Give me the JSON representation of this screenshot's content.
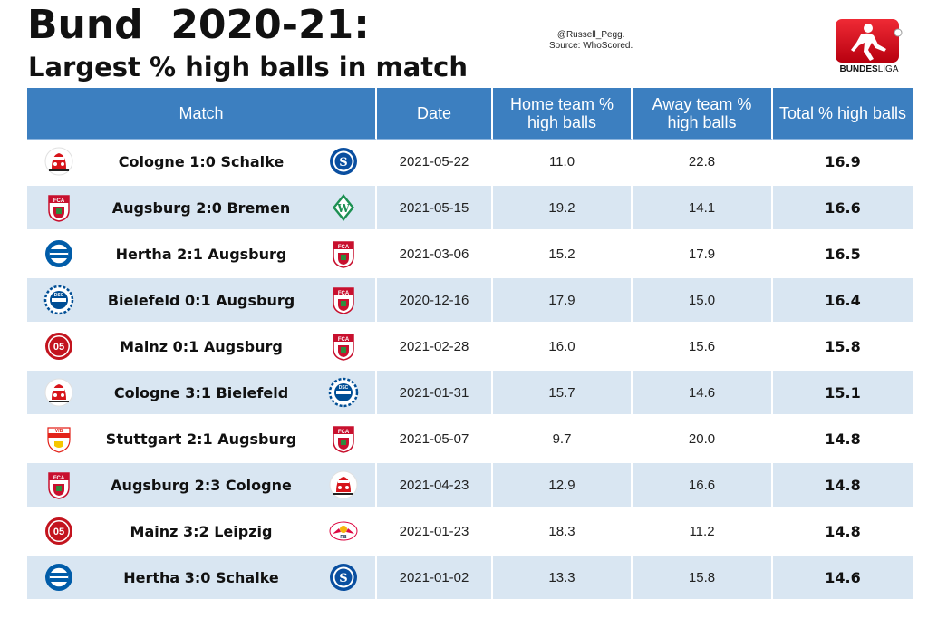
{
  "header": {
    "title": "Bund  2020-21:",
    "subtitle": "Largest % high balls in match",
    "credit_line1": "@Russell_Pegg.",
    "credit_line2": "Source: WhoScored."
  },
  "logo": {
    "name": "bundesliga-logo",
    "text_bold": "BUNDES",
    "text_light": "LIGA",
    "color": "#d20515"
  },
  "colors": {
    "header_bg": "#3c7fc0",
    "alt_row_bg": "#d9e6f2"
  },
  "chart_data": {
    "type": "table",
    "title": "Largest % high balls in match",
    "columns": [
      "Match",
      "Date",
      "Home team % high balls",
      "Away team % high balls",
      "Total % high balls"
    ],
    "rows": [
      {
        "home_crest": "cologne-crest",
        "match": "Cologne 1:0 Schalke",
        "away_crest": "schalke-crest",
        "date": "2021-05-22",
        "home_pct": "11.0",
        "away_pct": "22.8",
        "total_pct": "16.9"
      },
      {
        "home_crest": "augsburg-crest",
        "match": "Augsburg 2:0 Bremen",
        "away_crest": "bremen-crest",
        "date": "2021-05-15",
        "home_pct": "19.2",
        "away_pct": "14.1",
        "total_pct": "16.6"
      },
      {
        "home_crest": "hertha-crest",
        "match": "Hertha 2:1 Augsburg",
        "away_crest": "augsburg-crest",
        "date": "2021-03-06",
        "home_pct": "15.2",
        "away_pct": "17.9",
        "total_pct": "16.5"
      },
      {
        "home_crest": "bielefeld-crest",
        "match": "Bielefeld 0:1 Augsburg",
        "away_crest": "augsburg-crest",
        "date": "2020-12-16",
        "home_pct": "17.9",
        "away_pct": "15.0",
        "total_pct": "16.4"
      },
      {
        "home_crest": "mainz-crest",
        "match": "Mainz 0:1 Augsburg",
        "away_crest": "augsburg-crest",
        "date": "2021-02-28",
        "home_pct": "16.0",
        "away_pct": "15.6",
        "total_pct": "15.8"
      },
      {
        "home_crest": "cologne-crest",
        "match": "Cologne 3:1 Bielefeld",
        "away_crest": "bielefeld-crest",
        "date": "2021-01-31",
        "home_pct": "15.7",
        "away_pct": "14.6",
        "total_pct": "15.1"
      },
      {
        "home_crest": "stuttgart-crest",
        "match": "Stuttgart 2:1 Augsburg",
        "away_crest": "augsburg-crest",
        "date": "2021-05-07",
        "home_pct": "9.7",
        "away_pct": "20.0",
        "total_pct": "14.8"
      },
      {
        "home_crest": "augsburg-crest",
        "match": "Augsburg 2:3 Cologne",
        "away_crest": "cologne-crest",
        "date": "2021-04-23",
        "home_pct": "12.9",
        "away_pct": "16.6",
        "total_pct": "14.8"
      },
      {
        "home_crest": "mainz-crest",
        "match": "Mainz 3:2 Leipzig",
        "away_crest": "leipzig-crest",
        "date": "2021-01-23",
        "home_pct": "18.3",
        "away_pct": "11.2",
        "total_pct": "14.8"
      },
      {
        "home_crest": "hertha-crest",
        "match": "Hertha 3:0 Schalke",
        "away_crest": "schalke-crest",
        "date": "2021-01-02",
        "home_pct": "13.3",
        "away_pct": "15.8",
        "total_pct": "14.6"
      }
    ]
  }
}
